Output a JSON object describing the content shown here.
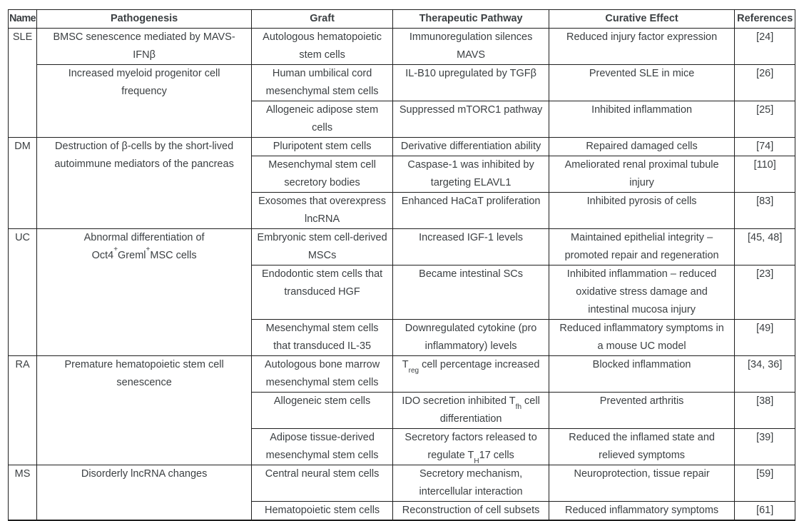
{
  "colors": {
    "text": "#3c4043",
    "border": "#1f1f1f",
    "background": "#ffffff"
  },
  "table": {
    "columns": [
      "Name",
      "Pathogenesis",
      "Graft",
      "Therapeutic Pathway",
      "Curative Effect",
      "References"
    ],
    "groups": [
      {
        "name": "SLE",
        "pathogenesis": [
          "BMSC senescence mediated by MAVS-\nIFNβ",
          "Increased myeloid progenitor cell\nfrequency"
        ],
        "rows": [
          {
            "graft": "Autologous hematopoietic\nstem cells",
            "pathway": "Immunoregulation silences\nMAVS",
            "effect": "Reduced injury factor expression",
            "ref": "[24]"
          },
          {
            "graft": "Human umbilical cord\nmesenchymal stem cells",
            "pathway": "IL-B10 upregulated by TGFβ",
            "effect": "Prevented SLE in mice",
            "ref": "[26]"
          },
          {
            "graft": "Allogeneic adipose stem\ncells",
            "pathway": "Suppressed mTORC1 pathway",
            "effect": "Inhibited inflammation",
            "ref": "[25]"
          }
        ]
      },
      {
        "name": "DM",
        "pathogenesis": "Destruction of β-cells by the short-lived\nautoimmune mediators of the pancreas",
        "rows": [
          {
            "graft": "Pluripotent stem cells",
            "pathway": "Derivative differentiation ability",
            "effect": "Repaired damaged cells",
            "ref": "[74]"
          },
          {
            "graft": "Mesenchymal stem cell\nsecretory bodies",
            "pathway": "Caspase-1 was inhibited by\ntargeting ELAVL1",
            "effect": "Ameliorated renal proximal tubule\ninjury",
            "ref": "[110]"
          },
          {
            "graft": "Exosomes that overexpress\nlncRNA",
            "pathway": "Enhanced HaCaT proliferation",
            "effect": "Inhibited pyrosis of cells",
            "ref": "[83]"
          }
        ]
      },
      {
        "name": "UC",
        "pathogenesis": "Abnormal differentiation of\nOct4^+^Greml^+^MSC cells",
        "rows": [
          {
            "graft": "Embryonic stem cell-derived\nMSCs",
            "pathway": "Increased IGF-1 levels",
            "effect": "Maintained epithelial integrity –\npromoted repair and regeneration",
            "ref": "[45, 48]"
          },
          {
            "graft": "Endodontic stem cells that\ntransduced HGF",
            "pathway": "Became intestinal SCs",
            "effect": "Inhibited inflammation – reduced\noxidative stress damage and\nintestinal mucosa injury",
            "ref": "[23]"
          },
          {
            "graft": "Mesenchymal stem cells\nthat transduced IL-35",
            "pathway": "Downregulated cytokine (pro\ninflammatory) levels",
            "effect": "Reduced inflammatory symptoms in\na mouse UC model",
            "ref": "[49]"
          }
        ]
      },
      {
        "name": "RA",
        "pathogenesis": "Premature hematopoietic stem cell\nsenescence",
        "rows": [
          {
            "graft": "Autologous bone marrow\nmesenchymal stem cells",
            "pathway": "T~reg~ cell percentage increased",
            "effect": "Blocked inflammation",
            "ref": "[34, 36]"
          },
          {
            "graft": "Allogeneic stem cells",
            "pathway": "IDO secretion inhibited T~fh~ cell\ndifferentiation",
            "effect": "Prevented arthritis",
            "ref": "[38]"
          },
          {
            "graft": "Adipose tissue-derived\nmesenchymal stem cells",
            "pathway": "Secretory factors released to\nregulate T~H~17 cells",
            "effect": "Reduced the inflamed state and\nrelieved symptoms",
            "ref": "[39]"
          }
        ]
      },
      {
        "name": "MS",
        "pathogenesis": "Disorderly lncRNA changes",
        "rows": [
          {
            "graft": "Central neural stem cells",
            "pathway": "Secretory mechanism,\nintercellular interaction",
            "effect": "Neuroprotection, tissue repair",
            "ref": "[59]"
          },
          {
            "graft": "Hematopoietic stem cells",
            "pathway": "Reconstruction of cell subsets",
            "effect": "Reduced inflammatory symptoms",
            "ref": "[61]"
          }
        ]
      }
    ]
  }
}
